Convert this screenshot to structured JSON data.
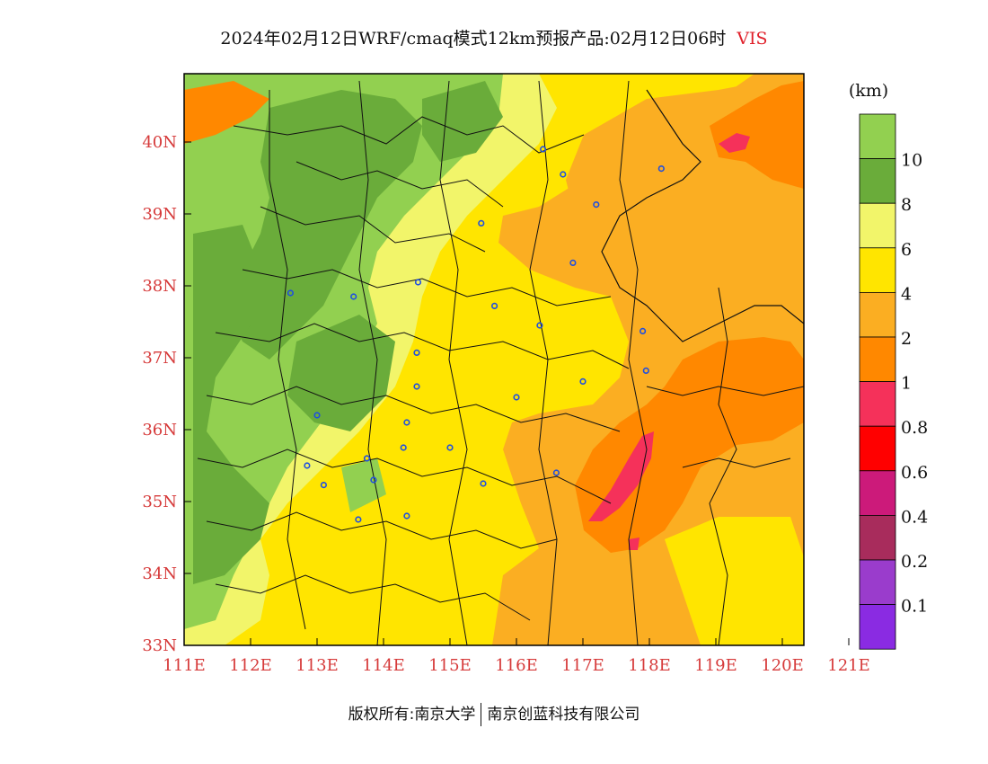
{
  "title": {
    "main": "2024年02月12日WRF/cmaq模式12km预报产品:02月12日06时",
    "variable": "VIS"
  },
  "colorbar": {
    "unit": "(km)",
    "levels": [
      {
        "label": "",
        "color": "#92d050"
      },
      {
        "label": "10",
        "color": "#6aac3a"
      },
      {
        "label": "8",
        "color": "#f2f56a"
      },
      {
        "label": "6",
        "color": "#ffe500"
      },
      {
        "label": "4",
        "color": "#fbae22"
      },
      {
        "label": "2",
        "color": "#ff8800"
      },
      {
        "label": "1",
        "color": "#f5315a"
      },
      {
        "label": "0.8",
        "color": "#ff0000"
      },
      {
        "label": "0.6",
        "color": "#cc1a7a"
      },
      {
        "label": "0.4",
        "color": "#a82c5c"
      },
      {
        "label": "0.2",
        "color": "#9a3ccc"
      },
      {
        "label": "0.1",
        "color": "#8a2be2"
      }
    ]
  },
  "axes": {
    "lat_labels": [
      "40N",
      "39N",
      "38N",
      "37N",
      "36N",
      "35N",
      "34N",
      "33N"
    ],
    "lon_labels": [
      "111E",
      "112E",
      "113E",
      "114E",
      "115E",
      "116E",
      "117E",
      "118E",
      "119E",
      "120E",
      "121E"
    ]
  },
  "stations": [
    [
      116.4,
      39.9
    ],
    [
      116.7,
      39.55
    ],
    [
      117.2,
      39.13
    ],
    [
      118.18,
      39.63
    ],
    [
      115.47,
      38.87
    ],
    [
      116.85,
      38.32
    ],
    [
      114.52,
      38.05
    ],
    [
      115.67,
      37.72
    ],
    [
      116.35,
      37.45
    ],
    [
      117.9,
      37.37
    ],
    [
      114.5,
      37.07
    ],
    [
      114.5,
      36.6
    ],
    [
      116.0,
      36.45
    ],
    [
      117.0,
      36.67
    ],
    [
      117.95,
      36.82
    ],
    [
      114.35,
      36.1
    ],
    [
      114.3,
      35.75
    ],
    [
      115.0,
      35.75
    ],
    [
      115.5,
      35.25
    ],
    [
      116.6,
      35.4
    ],
    [
      112.6,
      37.9
    ],
    [
      113.55,
      37.85
    ],
    [
      113.0,
      36.2
    ],
    [
      112.85,
      35.5
    ],
    [
      113.1,
      35.23
    ],
    [
      113.85,
      35.3
    ],
    [
      113.62,
      34.75
    ],
    [
      114.35,
      34.8
    ],
    [
      113.75,
      35.6
    ]
  ],
  "footer": {
    "left": "版权所有:南京大学",
    "right": "南京创蓝科技有限公司"
  }
}
